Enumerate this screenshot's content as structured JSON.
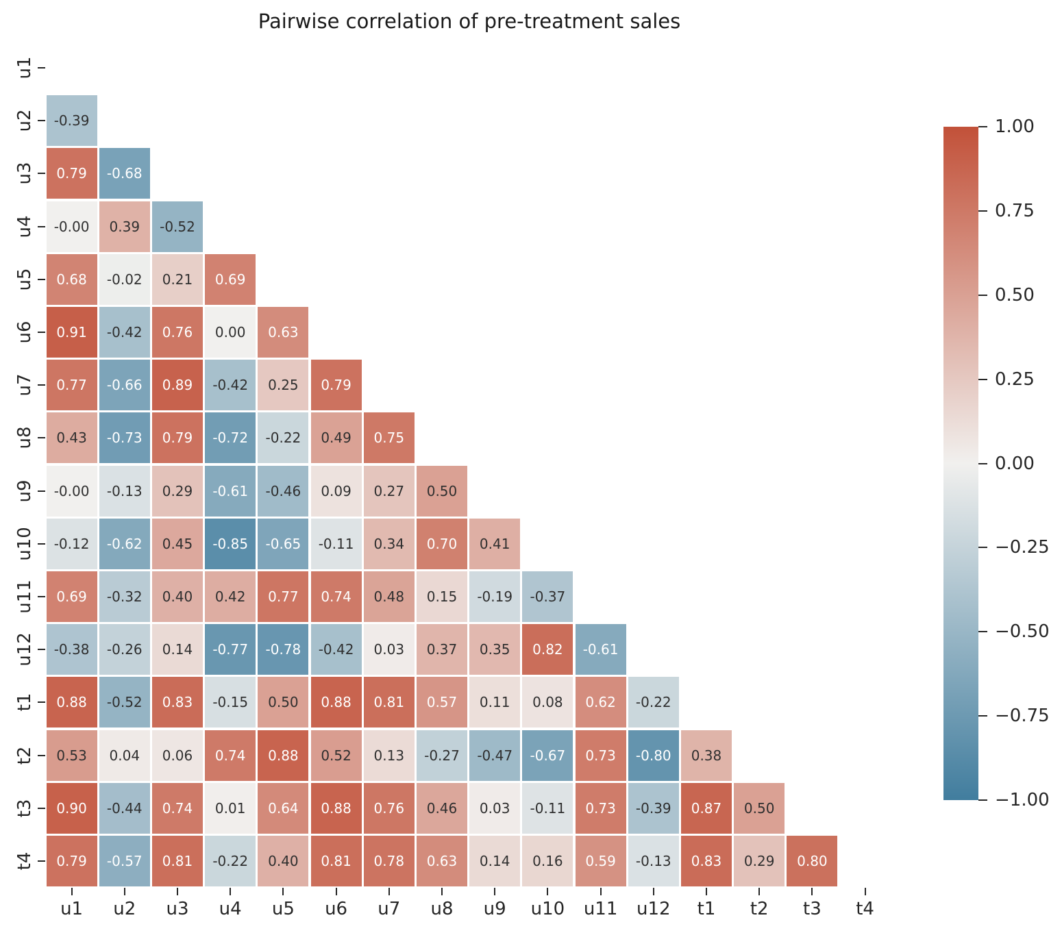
{
  "title": "Pairwise correlation of pre-treatment sales",
  "chart_data": {
    "type": "heatmap",
    "title": "Pairwise correlation of pre-treatment sales",
    "x_labels": [
      "u1",
      "u2",
      "u3",
      "u4",
      "u5",
      "u6",
      "u7",
      "u8",
      "u9",
      "u10",
      "u11",
      "u12",
      "t1",
      "t2",
      "t3",
      "t4"
    ],
    "y_labels": [
      "u1",
      "u2",
      "u3",
      "u4",
      "u5",
      "u6",
      "u7",
      "u8",
      "u9",
      "u10",
      "u11",
      "u12",
      "t1",
      "t2",
      "t3",
      "t4"
    ],
    "mask": "upper triangle and diagonal are masked (blank); only the lower triangle is drawn",
    "rows": [
      {
        "label": "u1",
        "values": []
      },
      {
        "label": "u2",
        "values": [
          "-0.39"
        ]
      },
      {
        "label": "u3",
        "values": [
          "0.79",
          "-0.68"
        ]
      },
      {
        "label": "u4",
        "values": [
          "-0.00",
          "0.39",
          "-0.52"
        ]
      },
      {
        "label": "u5",
        "values": [
          "0.68",
          "-0.02",
          "0.21",
          "0.69"
        ]
      },
      {
        "label": "u6",
        "values": [
          "0.91",
          "-0.42",
          "0.76",
          "0.00",
          "0.63"
        ]
      },
      {
        "label": "u7",
        "values": [
          "0.77",
          "-0.66",
          "0.89",
          "-0.42",
          "0.25",
          "0.79"
        ]
      },
      {
        "label": "u8",
        "values": [
          "0.43",
          "-0.73",
          "0.79",
          "-0.72",
          "-0.22",
          "0.49",
          "0.75"
        ]
      },
      {
        "label": "u9",
        "values": [
          "-0.00",
          "-0.13",
          "0.29",
          "-0.61",
          "-0.46",
          "0.09",
          "0.27",
          "0.50"
        ]
      },
      {
        "label": "u10",
        "values": [
          "-0.12",
          "-0.62",
          "0.45",
          "-0.85",
          "-0.65",
          "-0.11",
          "0.34",
          "0.70",
          "0.41"
        ]
      },
      {
        "label": "u11",
        "values": [
          "0.69",
          "-0.32",
          "0.40",
          "0.42",
          "0.77",
          "0.74",
          "0.48",
          "0.15",
          "-0.19",
          "-0.37"
        ]
      },
      {
        "label": "u12",
        "values": [
          "-0.38",
          "-0.26",
          "0.14",
          "-0.77",
          "-0.78",
          "-0.42",
          "0.03",
          "0.37",
          "0.35",
          "0.82",
          "-0.61"
        ]
      },
      {
        "label": "t1",
        "values": [
          "0.88",
          "-0.52",
          "0.83",
          "-0.15",
          "0.50",
          "0.88",
          "0.81",
          "0.57",
          "0.11",
          "0.08",
          "0.62",
          "-0.22"
        ]
      },
      {
        "label": "t2",
        "values": [
          "0.53",
          "0.04",
          "0.06",
          "0.74",
          "0.88",
          "0.52",
          "0.13",
          "-0.27",
          "-0.47",
          "-0.67",
          "0.73",
          "-0.80",
          "0.38"
        ]
      },
      {
        "label": "t3",
        "values": [
          "0.90",
          "-0.44",
          "0.74",
          "0.01",
          "0.64",
          "0.88",
          "0.76",
          "0.46",
          "0.03",
          "-0.11",
          "0.73",
          "-0.39",
          "0.87",
          "0.50"
        ]
      },
      {
        "label": "t4",
        "values": [
          "0.79",
          "-0.57",
          "0.81",
          "-0.22",
          "0.40",
          "0.81",
          "0.78",
          "0.63",
          "0.14",
          "0.16",
          "0.59",
          "-0.13",
          "0.83",
          "0.29",
          "0.80"
        ]
      }
    ],
    "value_range": [
      -1.0,
      1.0
    ],
    "colormap": {
      "positive_end": "#c25139",
      "center": "#f1f0ee",
      "negative_end": "#417d9e",
      "annotation_dark_text": "#2f2f2f",
      "annotation_light_text": "#ffffff",
      "grid_line": "#ffffff"
    },
    "colorbar": {
      "position": "right",
      "tick_labels": [
        "1.00",
        "0.75",
        "0.50",
        "0.25",
        "0.00",
        "−0.25",
        "−0.50",
        "−0.75",
        "−1.00"
      ]
    }
  }
}
